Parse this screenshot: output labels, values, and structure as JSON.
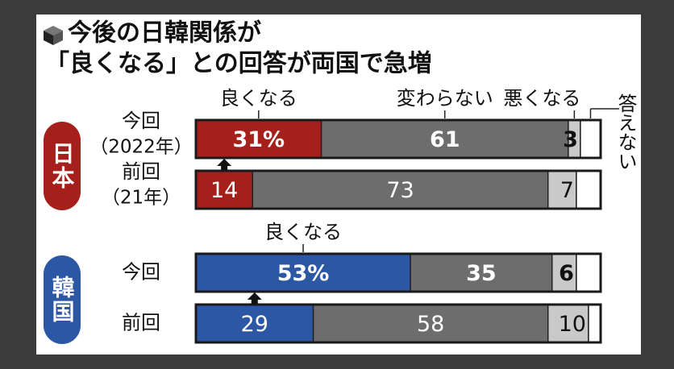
{
  "chart_data": {
    "type": "stacked-bar",
    "title": [
      "今後の日韓関係が",
      "「良くなる」との回答が両国で急増"
    ],
    "groups": [
      {
        "name": "日本",
        "color": "#a51f1b"
      },
      {
        "name": "韓国",
        "color": "#2b57a5"
      }
    ],
    "categories": [
      "今回",
      "前回",
      "今回",
      "前回"
    ],
    "category_sublabels": [
      "（2022年）",
      "（21年）",
      null,
      null
    ],
    "series": [
      {
        "name": "良くなる",
        "colors": [
          "#a51f1b",
          "#a51f1b",
          "#2b57a5",
          "#2b57a5"
        ],
        "values": [
          31,
          14,
          53,
          29
        ],
        "value_labels": [
          "31%",
          "14",
          "53%",
          "29"
        ]
      },
      {
        "name": "変わらない",
        "color": "#6d6d6d",
        "values": [
          61,
          73,
          35,
          58
        ],
        "value_labels": [
          "61",
          "73",
          "35",
          "58"
        ]
      },
      {
        "name": "悪くなる",
        "color": "#c9c9c9",
        "values": [
          3,
          7,
          6,
          10
        ],
        "value_labels": [
          "3",
          "7",
          "6",
          "10"
        ]
      },
      {
        "name": "答えない",
        "color": "#ffffff",
        "values": [
          5,
          6,
          6,
          3
        ]
      }
    ],
    "xlim": [
      0,
      100
    ]
  }
}
